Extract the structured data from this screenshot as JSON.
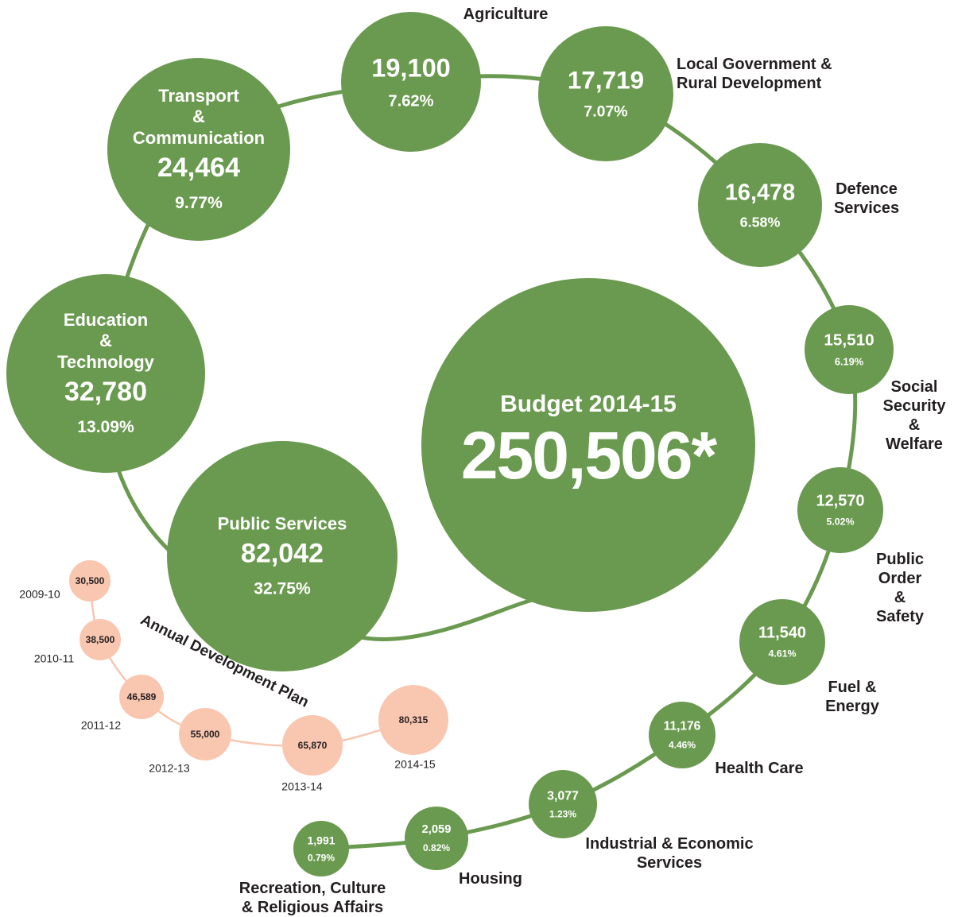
{
  "chart_data": [
    {
      "type": "bubble",
      "title": "Budget 2014-15",
      "total": 250506,
      "total_label": "250,506*",
      "color": "#6a9a4f",
      "categories": [
        "Public Services",
        "Education\n&\nTechnology",
        "Transport\n&\nCommunication",
        "Agriculture",
        "Local Government &\nRural Development",
        "Defence\nServices",
        "Social\nSecurity\n&\nWelfare",
        "Public\nOrder\n&\nSafety",
        "Fuel & Energy",
        "Health Care",
        "Industrial & Economic\nServices",
        "Housing",
        "Recreation, Culture\n& Religious Affairs"
      ],
      "values": [
        82042,
        32780,
        24464,
        19100,
        17719,
        16478,
        15510,
        12570,
        11540,
        11176,
        3077,
        2059,
        1991
      ],
      "value_labels": [
        "82,042",
        "32,780",
        "24,464",
        "19,100",
        "17,719",
        "16,478",
        "15,510",
        "12,570",
        "11,540",
        "11,176",
        "3,077",
        "2,059",
        "1,991"
      ],
      "shares": [
        32.75,
        13.09,
        9.77,
        7.62,
        7.07,
        6.58,
        6.19,
        5.02,
        4.61,
        4.46,
        1.23,
        0.82,
        0.79
      ],
      "share_labels": [
        "32.75%",
        "13.09%",
        "9.77%",
        "7.62%",
        "7.07%",
        "6.58%",
        "6.19%",
        "5.02%",
        "4.61%",
        "4.46%",
        "1.23%",
        "0.82%",
        "0.79%"
      ]
    },
    {
      "type": "bubble",
      "title": "Annual Development Plan",
      "color": "#f9c6b0",
      "categories": [
        "2009-10",
        "2010-11",
        "2011-12",
        "2012-13",
        "2013-14",
        "2014-15"
      ],
      "values": [
        30500,
        38500,
        46589,
        55000,
        65870,
        80315
      ],
      "value_labels": [
        "30,500",
        "38,500",
        "46,589",
        "55,000",
        "65,870",
        "80,315"
      ]
    }
  ]
}
